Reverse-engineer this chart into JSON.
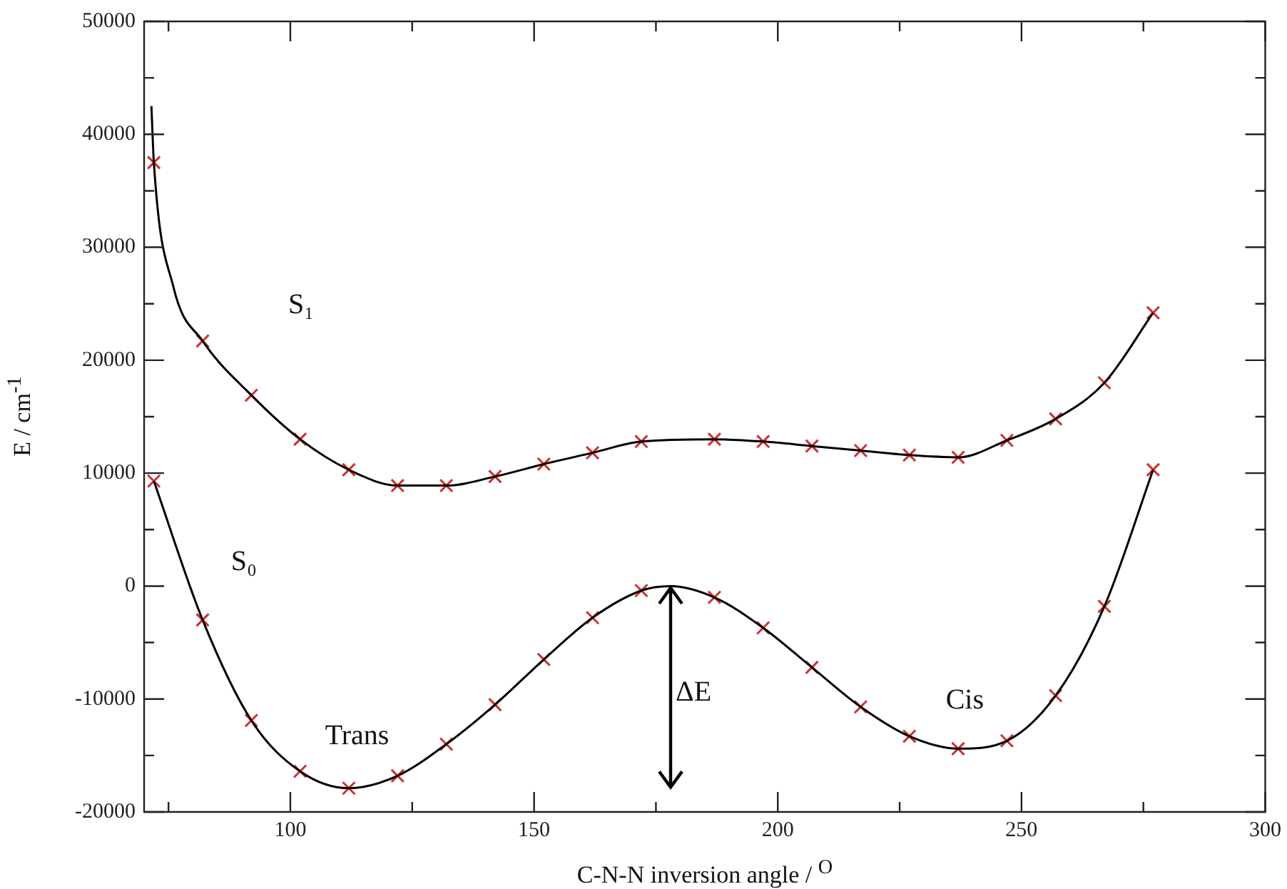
{
  "chart_data": {
    "type": "line",
    "xlabel": "C-N-N inversion angle / $^{O}$",
    "ylabel": "E / cm$^{-1}$",
    "xlim": [
      70,
      300
    ],
    "xticks": [
      {
        "value": 75,
        "label": null
      },
      100,
      {
        "value": 125,
        "label": null
      },
      150,
      {
        "value": 175,
        "label": null
      },
      200,
      {
        "value": 225,
        "label": null
      },
      250,
      {
        "value": 275,
        "label": null
      },
      300
    ],
    "ylim": [
      -20000,
      50000
    ],
    "yticks": [
      -20000,
      {
        "value": -15000,
        "label": null
      },
      -10000,
      {
        "value": -5000,
        "label": null
      },
      0,
      {
        "value": 5000,
        "label": null
      },
      10000,
      {
        "value": 15000,
        "label": null
      },
      20000,
      {
        "value": 25000,
        "label": null
      },
      30000,
      {
        "value": 35000,
        "label": null
      },
      40000,
      {
        "value": 45000,
        "label": null
      },
      50000
    ],
    "series": [
      {
        "type": "line",
        "color": "#000000",
        "marker": "none",
        "x": [
          71.5,
          72,
          76,
          82,
          92,
          102,
          112,
          122,
          132,
          142,
          152,
          162,
          172,
          187,
          197,
          207,
          217,
          227,
          237,
          247,
          257,
          267,
          277
        ],
        "values": [
          42500,
          37500,
          26500,
          21700,
          16900,
          13000,
          10300,
          8900,
          8900,
          9700,
          10800,
          11800,
          12800,
          13000,
          12800,
          12400,
          12000,
          11600,
          11400,
          12900,
          14800,
          18000,
          24200
        ]
      },
      {
        "type": "scatter",
        "color": "#d03030",
        "marker": "cross",
        "x": [
          72,
          82,
          92,
          102,
          112,
          122,
          132,
          142,
          152,
          162,
          172,
          187,
          197,
          207,
          217,
          227,
          237,
          247,
          257,
          267,
          277
        ],
        "values": [
          37500,
          21700,
          16900,
          13000,
          10300,
          8900,
          8900,
          9700,
          10800,
          11800,
          12800,
          13000,
          12800,
          12400,
          12000,
          11600,
          11400,
          12900,
          14800,
          18000,
          24200
        ]
      },
      {
        "type": "line",
        "color": "#000000",
        "marker": "none",
        "x": [
          72,
          82,
          92,
          102,
          112,
          122,
          132,
          142,
          152,
          162,
          172,
          178,
          187,
          197,
          207,
          217,
          227,
          237,
          247,
          257,
          267,
          277
        ],
        "values": [
          9300,
          -3000,
          -11900,
          -16400,
          -17900,
          -16800,
          -14000,
          -10500,
          -6500,
          -2800,
          -400,
          0,
          -1000,
          -3700,
          -7200,
          -10700,
          -13300,
          -14400,
          -13700,
          -9700,
          -1800,
          10300
        ]
      },
      {
        "type": "scatter",
        "color": "#d03030",
        "marker": "cross",
        "x": [
          72,
          82,
          92,
          102,
          112,
          122,
          132,
          142,
          152,
          162,
          172,
          187,
          197,
          207,
          217,
          227,
          237,
          247,
          257,
          267,
          277
        ],
        "values": [
          9300,
          -3000,
          -11900,
          -16400,
          -17900,
          -16800,
          -14000,
          -10500,
          -6500,
          -2800,
          -400,
          -1000,
          -3700,
          -7200,
          -10700,
          -13300,
          -14400,
          -13700,
          -9700,
          -1800,
          10300
        ]
      }
    ],
    "annotations": [
      "S₁",
      "S₀",
      "Trans",
      "Cis",
      "ΔE"
    ]
  }
}
